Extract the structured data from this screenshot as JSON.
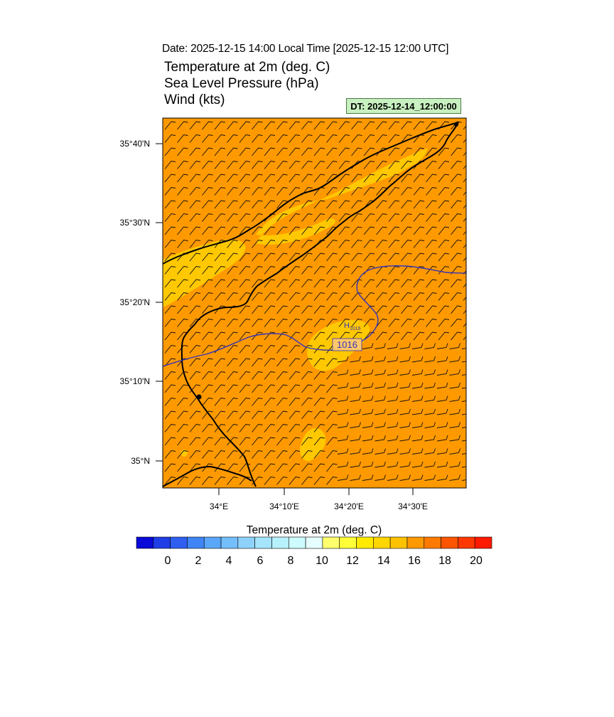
{
  "header": {
    "date_line": "Date: 2025-12-15  14:00 Local Time [2025-12-15  12:00 UTC]",
    "titles": [
      "Temperature at 2m   (deg. C)",
      "Sea Level Pressure   (hPa)",
      "Wind   (kts)"
    ],
    "dt_label": "DT: 2025-12-14_12:00:00"
  },
  "map": {
    "lat_ticks": [
      "35°40'N",
      "35°30'N",
      "35°20'N",
      "35°10'N",
      "35°N"
    ],
    "lon_ticks": [
      "34°E",
      "34°10'E",
      "34°20'E",
      "34°30'E"
    ],
    "high_marker": "H",
    "high_value": "1016",
    "isobar_label": "1016",
    "colors": {
      "background_temp": "#ff9900",
      "warm_patch": "#ffc800",
      "isobar": "#3333bb",
      "coast": "#000000",
      "wind_barb": "#111111"
    }
  },
  "colorbar": {
    "title": "Temperature at 2m  (deg. C)",
    "labels": [
      "0",
      "2",
      "4",
      "6",
      "8",
      "10",
      "12",
      "14",
      "16",
      "18",
      "20"
    ],
    "colors": [
      "#0a0ad8",
      "#1f3ee6",
      "#2f5ff0",
      "#3f85f5",
      "#5aa6f9",
      "#74befb",
      "#8ed2fc",
      "#a4e4fd",
      "#b8f1fe",
      "#cdfbfe",
      "#e6fefe",
      "#ffff6e",
      "#ffff38",
      "#ffea00",
      "#ffd600",
      "#ffc200",
      "#ff9900",
      "#ff7a00",
      "#ff5500",
      "#ff3800",
      "#ff1a00"
    ]
  }
}
